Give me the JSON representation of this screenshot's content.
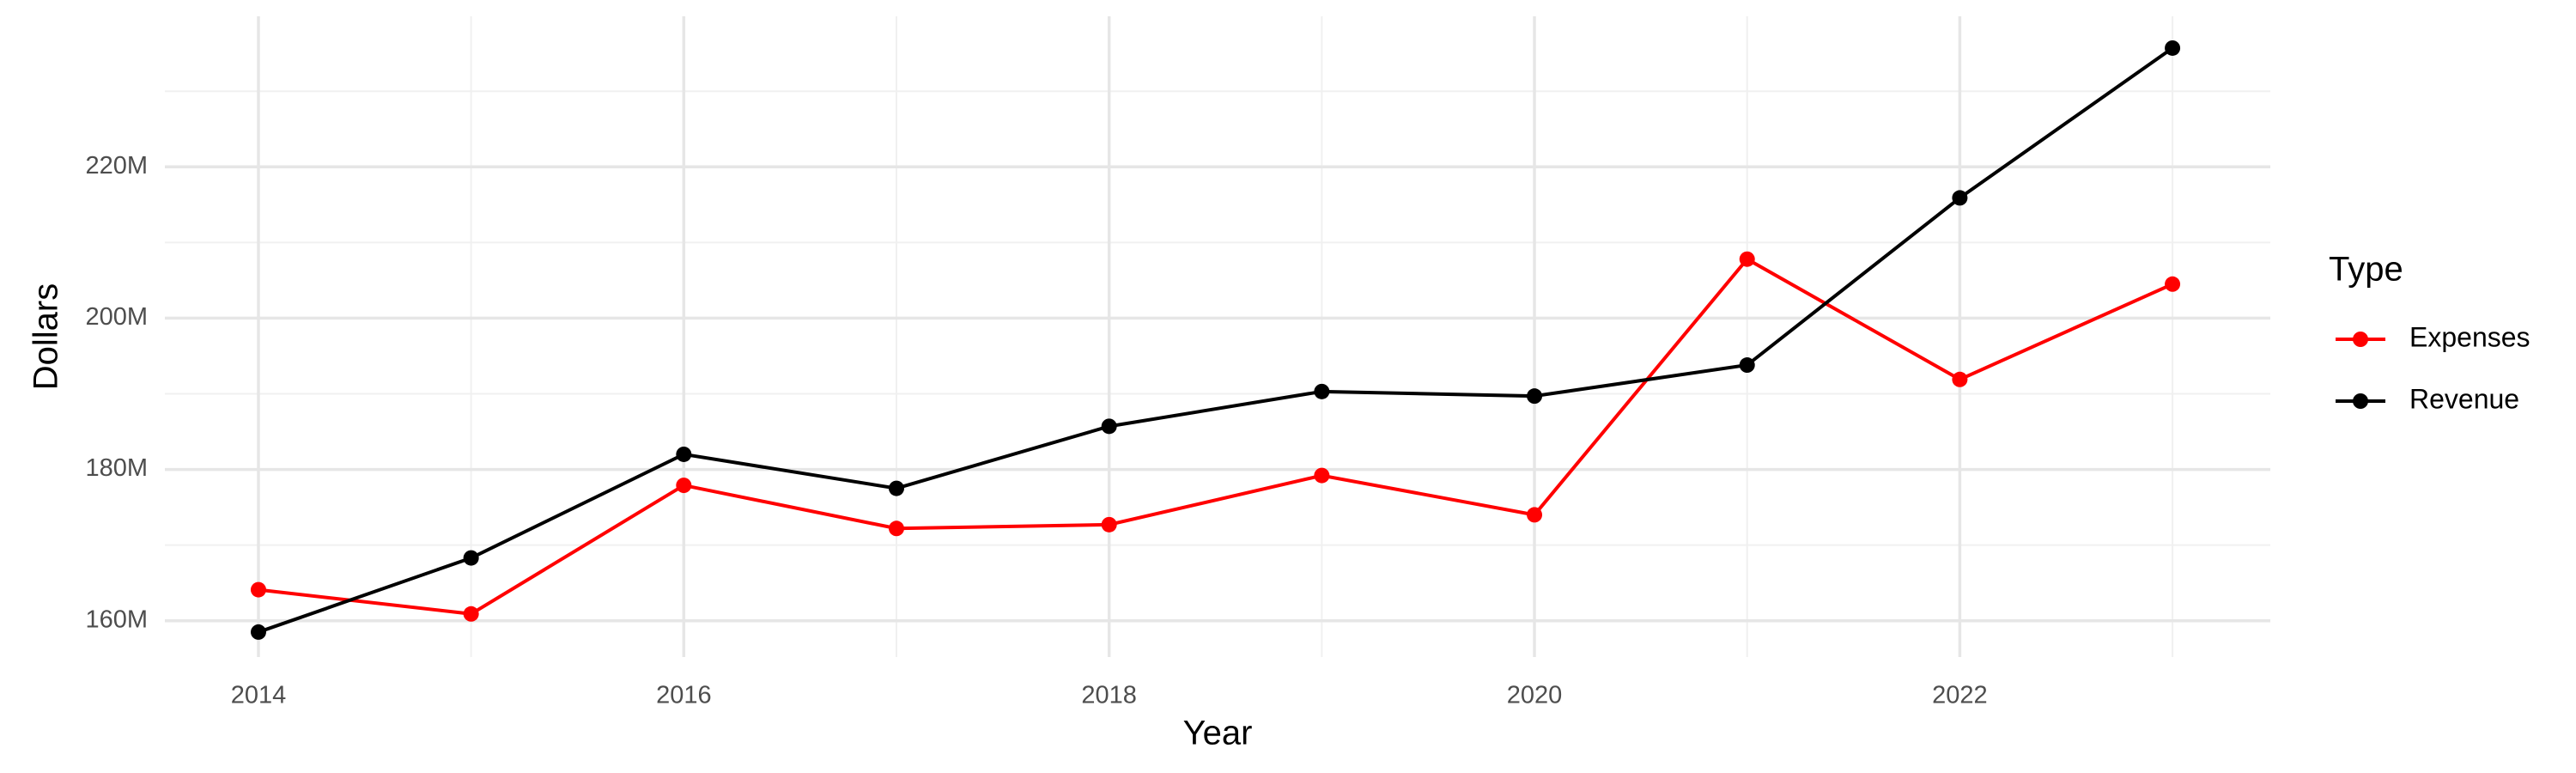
{
  "chart_data": {
    "type": "line",
    "x_label": "Year",
    "y_label": "Dollars",
    "legend_title": "Type",
    "legend": "right",
    "grid": true,
    "x": [
      2014,
      2015,
      2016,
      2017,
      2018,
      2019,
      2020,
      2021,
      2022,
      2023
    ],
    "series": [
      {
        "name": "Expenses",
        "color": "#ff0000",
        "values": [
          164100000,
          160900000,
          177900000,
          172200000,
          172700000,
          179200000,
          174000000,
          207800000,
          191900000,
          204500000
        ]
      },
      {
        "name": "Revenue",
        "color": "#000000",
        "values": [
          158500000,
          168300000,
          182000000,
          177500000,
          185700000,
          190300000,
          189700000,
          193800000,
          215900000,
          235700000
        ]
      }
    ],
    "xlim": [
      2013.56,
      2023.46
    ],
    "xticks": [
      2014,
      2016,
      2018,
      2020,
      2022
    ],
    "ylim": [
      155200000,
      239900000
    ],
    "yticks": [
      {
        "value": 160000000,
        "label": "160M"
      },
      {
        "value": 180000000,
        "label": "180M"
      },
      {
        "value": 200000000,
        "label": "200M"
      },
      {
        "value": 220000000,
        "label": "220M"
      }
    ]
  }
}
